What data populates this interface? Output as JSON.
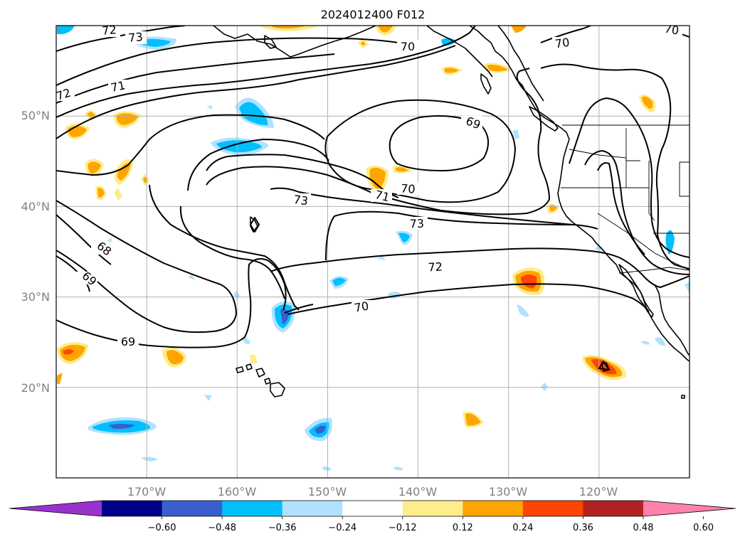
{
  "title": "2024012400 F012",
  "map": {
    "lat_labels": [
      "50°N",
      "40°N",
      "30°N",
      "20°N"
    ],
    "lon_labels": [
      "170°W",
      "160°W",
      "150°W",
      "140°W",
      "130°W",
      "120°W"
    ],
    "extent": {
      "lon": [
        -180,
        -110
      ],
      "lat": [
        10,
        60
      ]
    }
  },
  "contours": {
    "levels": [
      68,
      69,
      70,
      71,
      72,
      73
    ],
    "labels": [
      "72",
      "73",
      "70",
      "70",
      "70",
      "72",
      "71",
      "69",
      "70",
      "71",
      "73",
      "73",
      "68",
      "69",
      "72",
      "70",
      "69"
    ]
  },
  "colorbar": {
    "ticks": [
      "−0.60",
      "−0.48",
      "−0.36",
      "−0.24",
      "−0.12",
      "0.12",
      "0.24",
      "0.36",
      "0.48",
      "0.60"
    ],
    "colors": [
      "#9932cc",
      "#00008b",
      "#3a5fcd",
      "#00bfff",
      "#b0e2ff",
      "#ffffff",
      "#ffec8b",
      "#ffa500",
      "#ff4500",
      "#b22222",
      "#ff82ab"
    ],
    "extend": "both"
  }
}
